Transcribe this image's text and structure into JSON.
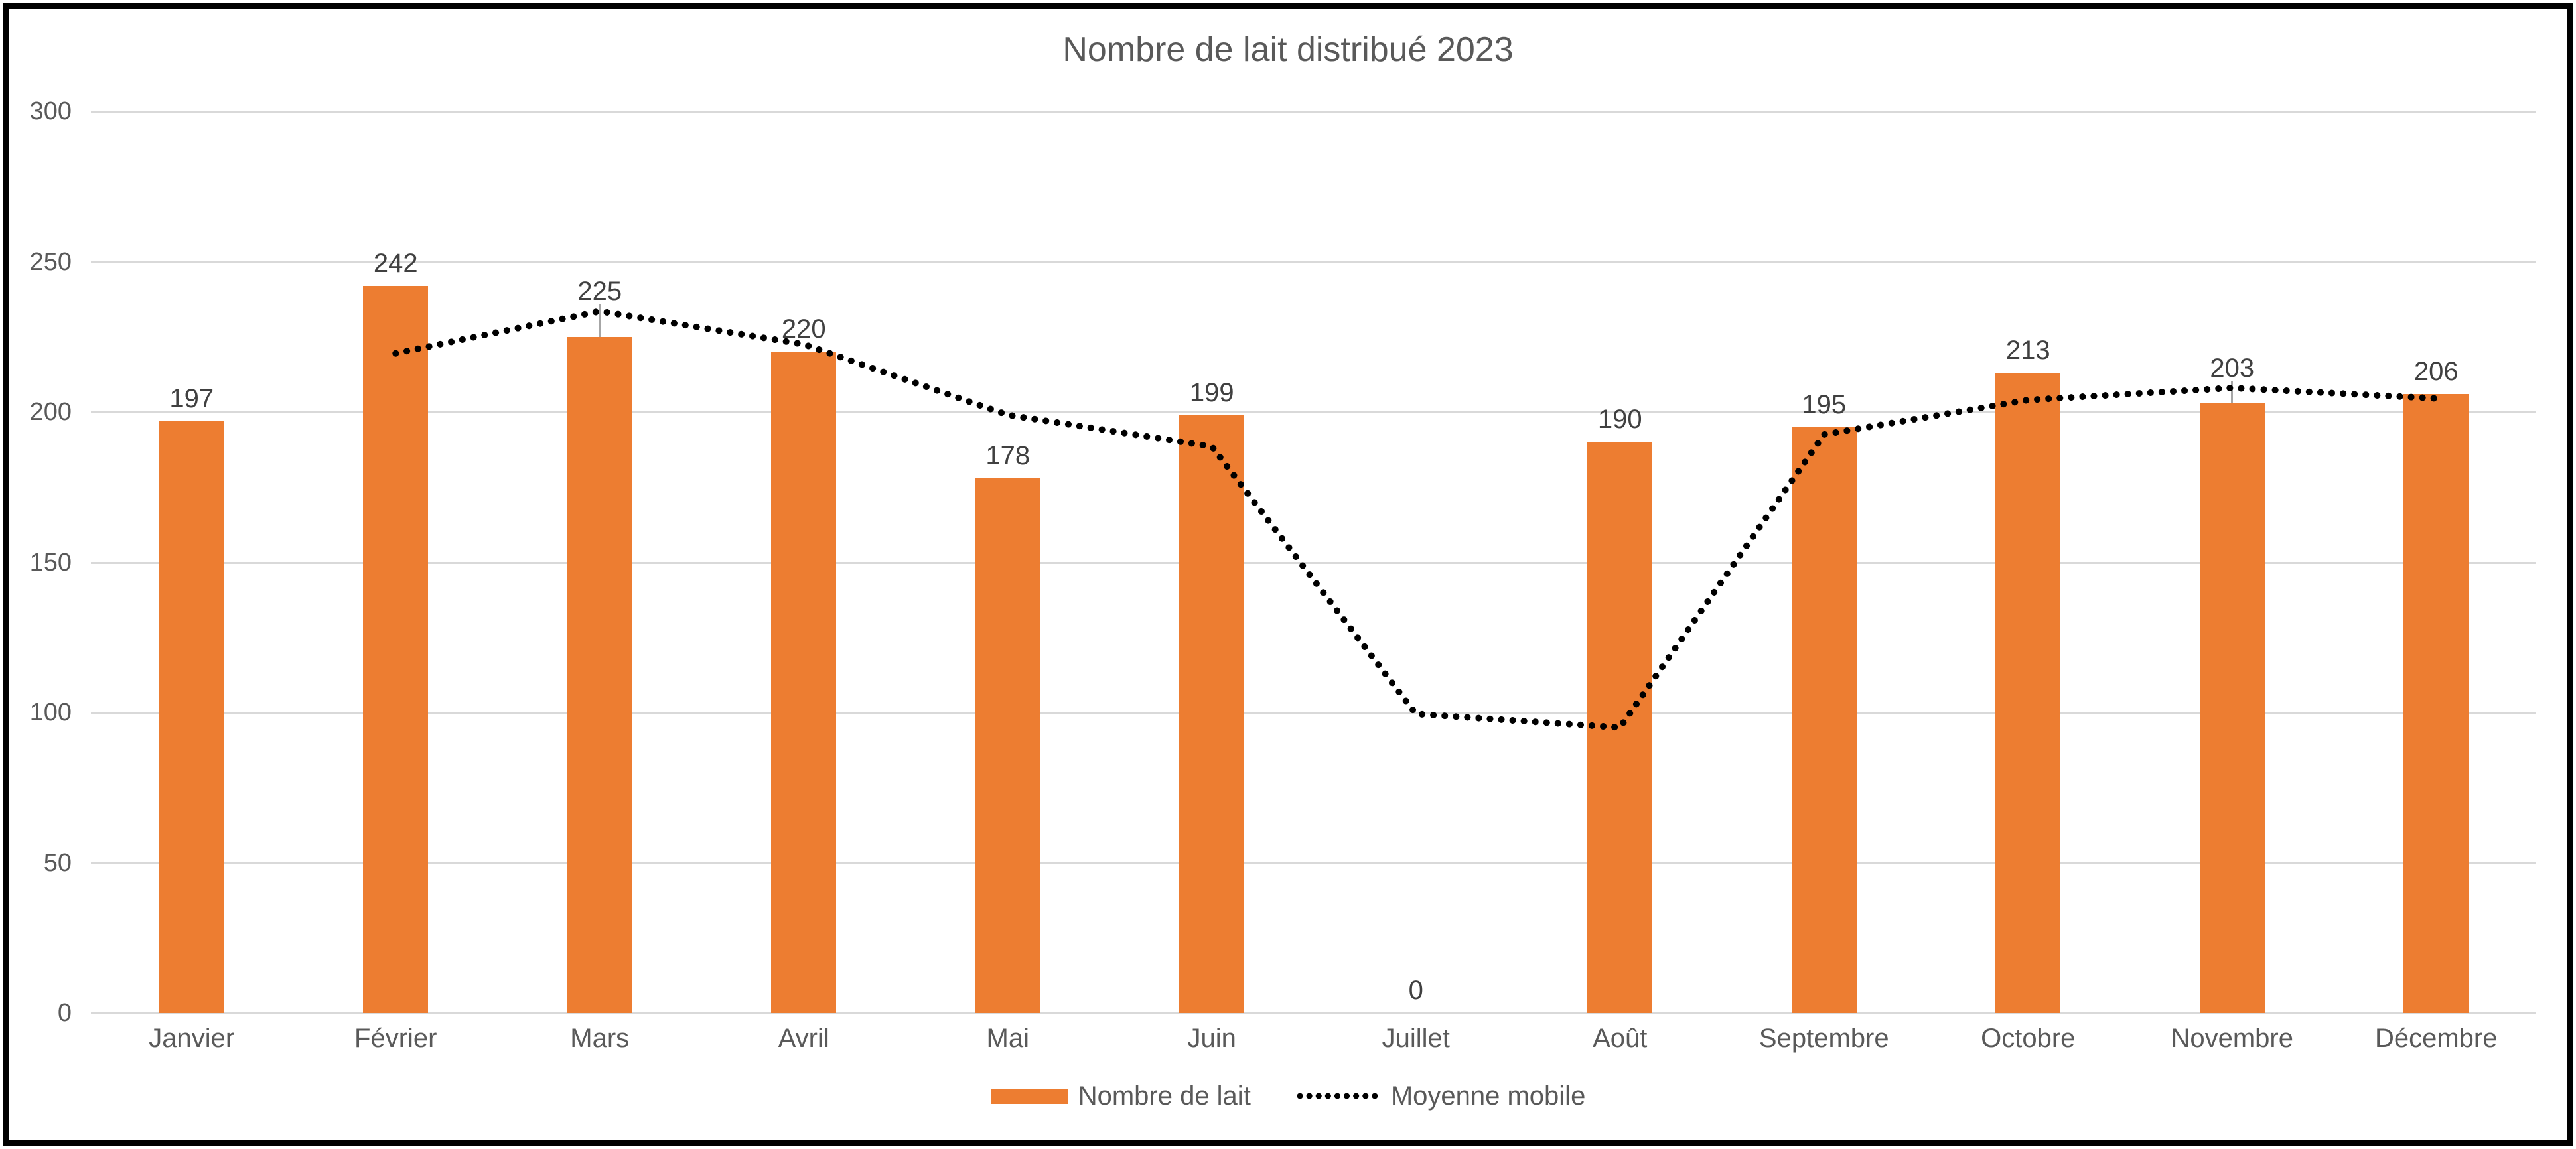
{
  "title": "Nombre de lait distribué 2023",
  "legend": {
    "items": [
      {
        "label": "Nombre de lait",
        "swatch": "bar"
      },
      {
        "label": "Moyenne mobile",
        "swatch": "dotted-line"
      }
    ]
  },
  "colors": {
    "bar": "#ED7D31",
    "line": "#000000",
    "grid": "#D9D9D9",
    "title_text": "#595959",
    "axis_text": "#595959",
    "data_label_text": "#404040",
    "leader": "#A6A6A6",
    "frame_border": "#000000",
    "background": "#FFFFFF"
  },
  "chart_data": {
    "type": "bar",
    "title": "Nombre de lait distribué 2023",
    "categories": [
      "Janvier",
      "Février",
      "Mars",
      "Avril",
      "Mai",
      "Juin",
      "Juillet",
      "Août",
      "Septembre",
      "Octobre",
      "Novembre",
      "Décembre"
    ],
    "series": [
      {
        "name": "Nombre de lait",
        "type": "bar",
        "color": "#ED7D31",
        "values": [
          197,
          242,
          225,
          220,
          178,
          199,
          0,
          190,
          195,
          213,
          203,
          206
        ],
        "data_labels": [
          "197",
          "242",
          "225",
          "220",
          "178",
          "199",
          "0",
          "190",
          "195",
          "213",
          "203",
          "206"
        ]
      },
      {
        "name": "Moyenne mobile",
        "type": "line",
        "style": "dotted",
        "color": "#000000",
        "values": [
          null,
          219.5,
          233.5,
          222.5,
          199,
          188.5,
          99.5,
          95,
          192.5,
          204,
          208,
          204.5
        ]
      }
    ],
    "ylim": [
      0,
      300
    ],
    "yticks": [
      0,
      50,
      100,
      150,
      200,
      250,
      300
    ],
    "xlabel": "",
    "ylabel": "",
    "grid": true,
    "legend_position": "bottom",
    "raised_label_categories": [
      "Mars",
      "Novembre"
    ]
  }
}
